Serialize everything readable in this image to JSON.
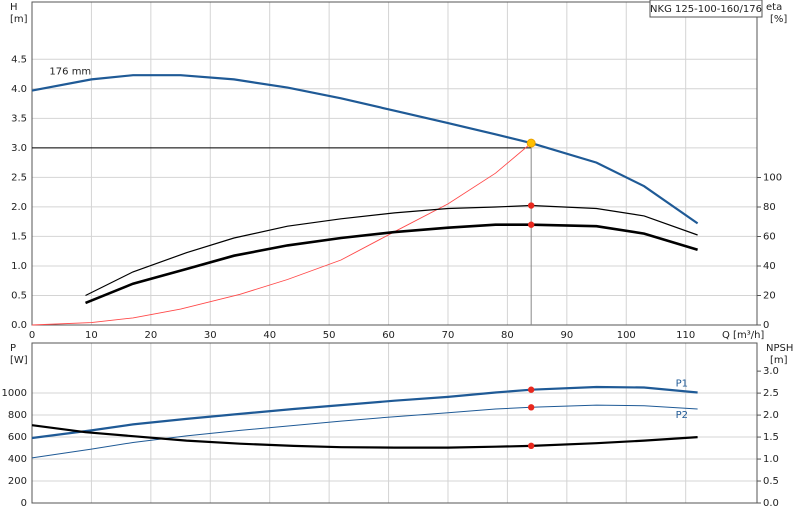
{
  "chart_data": [
    {
      "type": "line",
      "title": "NKG 125-100-160/176",
      "ylabel": "H",
      "yunit": "[m]",
      "y2label": "eta",
      "y2unit": "[%]",
      "xlabel": "Q [m³/h]",
      "xlim": [
        0,
        122
      ],
      "xticks": [
        0,
        10,
        20,
        30,
        40,
        50,
        60,
        70,
        80,
        90,
        100,
        110
      ],
      "ylim": [
        0,
        5.47
      ],
      "yticks": [
        {
          "value": 0,
          "label": "0.0"
        },
        0.5,
        {
          "value": 1,
          "label": "1.0"
        },
        1.5,
        {
          "value": 2,
          "label": "2.0"
        },
        2.5,
        {
          "value": 3,
          "label": "3.0"
        },
        3.5,
        {
          "value": 4,
          "label": "4.0"
        },
        4.5
      ],
      "y2lim": [
        0,
        219
      ],
      "y2ticks": [
        0,
        20,
        40,
        60,
        80,
        100
      ],
      "grid": true,
      "series": [
        {
          "name": "176 mm",
          "color": "#1f5a96",
          "width": 2.2,
          "x": [
            0,
            10,
            17,
            25,
            34,
            43,
            52,
            61,
            70,
            78,
            84,
            95,
            103,
            112
          ],
          "values": [
            3.97,
            4.16,
            4.23,
            4.23,
            4.16,
            4.02,
            3.84,
            3.63,
            3.42,
            3.23,
            3.08,
            2.75,
            2.35,
            1.72
          ]
        },
        {
          "color": "#ff4a4a",
          "width": 0.9,
          "x": [
            0,
            10,
            17,
            25,
            35,
            43,
            52,
            61,
            70,
            78,
            84
          ],
          "values": [
            0,
            0.04,
            0.12,
            0.27,
            0.52,
            0.77,
            1.1,
            1.58,
            2.05,
            2.57,
            3.08
          ]
        },
        {
          "color": "#000000",
          "width": 1.2,
          "axis": "y2",
          "x": [
            9,
            17,
            26,
            34,
            43,
            52,
            61,
            70,
            78,
            84,
            95,
            103,
            112
          ],
          "values": [
            20,
            36,
            49,
            59,
            67,
            72,
            76,
            79,
            80,
            81,
            79,
            74,
            61
          ]
        },
        {
          "color": "#000000",
          "width": 2.6,
          "axis": "y2",
          "x": [
            9,
            17,
            26,
            34,
            43,
            52,
            61,
            70,
            78,
            84,
            95,
            103,
            112
          ],
          "values": [
            15,
            28,
            38,
            47,
            54,
            59,
            63,
            66,
            68,
            68,
            67,
            62,
            51
          ]
        }
      ],
      "guide": {
        "x": 84,
        "y": 3.0
      },
      "markers": [
        {
          "x": 84,
          "y": 3.08,
          "color": "#ffc000"
        },
        {
          "x": 84,
          "y": 81,
          "color": "#e8281e",
          "axis": "y2"
        },
        {
          "x": 84,
          "y": 68,
          "color": "#e8281e",
          "axis": "y2"
        }
      ]
    },
    {
      "type": "line",
      "ylabel": "P",
      "yunit": "[W]",
      "y2label": "NPSH",
      "y2unit": "[m]",
      "xlim": [
        0,
        122
      ],
      "ylim": [
        0,
        1455
      ],
      "yticks": [
        0,
        200,
        400,
        600,
        800,
        1000
      ],
      "y2lim": [
        0,
        3.64
      ],
      "y2ticks": [
        {
          "value": 0,
          "label": "0.0"
        },
        0.5,
        {
          "value": 1,
          "label": "1.0"
        },
        1.5,
        {
          "value": 2,
          "label": "2.0"
        },
        2.5,
        {
          "value": 3,
          "label": "3.0"
        }
      ],
      "grid": true,
      "series": [
        {
          "name": "P1",
          "color": "#1f5a96",
          "width": 2.2,
          "x": [
            0,
            10,
            17,
            26,
            35,
            44,
            52,
            61,
            70,
            78,
            84,
            95,
            103,
            112
          ],
          "values": [
            591,
            660,
            715,
            765,
            810,
            855,
            890,
            930,
            965,
            1005,
            1030,
            1055,
            1050,
            1005
          ]
        },
        {
          "name": "P2",
          "color": "#1f5a96",
          "width": 1,
          "x": [
            0,
            10,
            17,
            26,
            35,
            44,
            52,
            61,
            70,
            78,
            84,
            95,
            103,
            112
          ],
          "values": [
            410,
            490,
            550,
            610,
            660,
            705,
            745,
            785,
            820,
            855,
            870,
            890,
            885,
            855
          ]
        },
        {
          "color": "#000000",
          "width": 2.2,
          "axis": "y2",
          "x": [
            0,
            9,
            17,
            26,
            35,
            44,
            52,
            61,
            70,
            78,
            84,
            95,
            103,
            112
          ],
          "values": [
            1.77,
            1.61,
            1.52,
            1.42,
            1.35,
            1.3,
            1.27,
            1.26,
            1.26,
            1.28,
            1.3,
            1.36,
            1.42,
            1.5
          ]
        }
      ],
      "markers": [
        {
          "x": 84,
          "y": 1030,
          "color": "#e8281e"
        },
        {
          "x": 84,
          "y": 870,
          "color": "#e8281e"
        },
        {
          "x": 84,
          "y": 1.3,
          "color": "#e8281e",
          "axis": "y2"
        }
      ]
    }
  ]
}
